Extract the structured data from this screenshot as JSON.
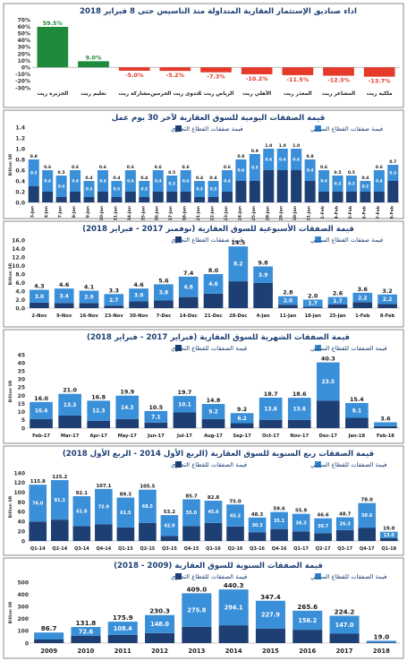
{
  "colors": {
    "residential": "#3a8fd9",
    "commercial": "#1d3f73",
    "panel_border": "#8a8a8a",
    "positive": "#1f8a3c",
    "negative": "#e53a2a",
    "title": "#1d3f73"
  },
  "chart_data": [
    {
      "type": "bar",
      "title": "اداء صناديق الإستثمار العقارية المتداولة منذ التاسيس حتى 8 فبراير 2018",
      "ylim": [
        -30,
        70
      ],
      "yticks": [
        "70%",
        "60%",
        "50%",
        "40%",
        "30%",
        "20%",
        "10%",
        "0%",
        "-10%",
        "-20%",
        "-30%"
      ],
      "categories": [
        "الجزيرة ريت",
        "تعليم ريت",
        "مشاركة ريت",
        "جدوى ريت الحرمين",
        "الرياض ريت 1",
        "الأهلي ريت",
        "المعذر ريت",
        "المشاعر ريت",
        "ملكية ريت"
      ],
      "values": [
        59.5,
        9.0,
        -5.0,
        -5.2,
        -7.3,
        -10.2,
        -11.5,
        -12.3,
        -13.7
      ],
      "value_labels": [
        "59.5%",
        "9.0%",
        "-5.0%",
        "-5.2%",
        "-7.3%",
        "-10.2%",
        "-11.5%",
        "-12.3%",
        "-13.7%"
      ]
    },
    {
      "type": "bar",
      "stacked": true,
      "title": "قيمة الصفقات اليومية للسوق العقارية لآخر 30 يوم عمل",
      "ylabel": "Billion SR",
      "ylim": [
        0,
        1.4
      ],
      "yticks": [
        "1.4",
        "1.2",
        "1.0",
        "0.8",
        "0.6",
        "0.4",
        "0.2",
        "0.0"
      ],
      "legend": [
        "قيمة صفقات القطاع السكني",
        "قيمة صفقات القطاع التجاري"
      ],
      "categories": [
        "3-Jan",
        "4-Jan",
        "7-Jan",
        "8-Jan",
        "9-Jan",
        "10-Jan",
        "11-Jan",
        "14-Jan",
        "15-Jan",
        "16-Jan",
        "17-Jan",
        "18-Jan",
        "21-Jan",
        "22-Jan",
        "23-Jan",
        "24-Jan",
        "25-Jan",
        "28-Jan",
        "29-Jan",
        "30-Jan",
        "31-Jan",
        "1-Feb",
        "4-Feb",
        "5-Feb",
        "6-Feb",
        "7-Feb",
        "8-Feb"
      ],
      "residential": [
        0.5,
        0.4,
        0.4,
        0.4,
        0.3,
        0.4,
        0.3,
        0.4,
        0.3,
        0.4,
        0.3,
        0.4,
        0.3,
        0.3,
        0.4,
        0.4,
        0.5,
        0.4,
        0.4,
        0.4,
        0.4,
        0.4,
        0.3,
        0.3,
        0.2,
        0.4,
        0.3
      ],
      "commercial": [
        0.3,
        0.2,
        0.1,
        0.2,
        0.1,
        0.2,
        0.1,
        0.2,
        0.1,
        0.2,
        0.2,
        0.2,
        0.1,
        0.1,
        0.2,
        0.4,
        0.4,
        0.6,
        0.6,
        0.6,
        0.4,
        0.2,
        0.2,
        0.2,
        0.2,
        0.2,
        0.4
      ],
      "totals": [
        "0.8",
        "0.6",
        "0.5",
        "0.6",
        "0.4",
        "0.6",
        "0.4",
        "0.6",
        "0.4",
        "0.6",
        "0.5",
        "0.6",
        "0.4",
        "0.4",
        "0.6",
        "0.8",
        "0.9",
        "1.0",
        "1.0",
        "1.0",
        "0.8",
        "0.6",
        "0.5",
        "0.5",
        "0.4",
        "0.6",
        "0.7"
      ]
    },
    {
      "type": "bar",
      "stacked": true,
      "title": "قيمة الصفقات الأسبوعية للسوق العقارية (نوفمبر 2017 - فبراير 2018)",
      "ylabel": "Billion SR",
      "ylim": [
        0,
        16
      ],
      "yticks": [
        "16.0",
        "14.0",
        "12.0",
        "10.0",
        "8.0",
        "6.0",
        "4.0",
        "2.0",
        "0.0"
      ],
      "legend": [
        "قيمة صفقات القطاع السكني",
        "قيمة صفقات القطاع التجاري"
      ],
      "categories": [
        "2-Nov",
        "9-Nov",
        "16-Nov",
        "23-Nov",
        "30-Nov",
        "7-Dec",
        "14-Dec",
        "21-Dec",
        "28-Dec",
        "4-Jan",
        "11-Jan",
        "18-Jan",
        "25-Jan",
        "1-Feb",
        "8-Feb"
      ],
      "totals": [
        4.3,
        4.6,
        4.1,
        3.3,
        4.6,
        5.6,
        7.4,
        8.0,
        14.5,
        9.8,
        2.8,
        2.0,
        2.6,
        3.6,
        3.2
      ],
      "residential": [
        3.0,
        3.4,
        2.9,
        2.7,
        3.0,
        3.8,
        4.8,
        4.6,
        8.2,
        3.9,
        2.0,
        1.7,
        1.7,
        2.2,
        2.2
      ],
      "residential_labels": [
        "3.0",
        "3.4",
        "2.9",
        "2.7",
        "3.0",
        "3.8",
        "4.8",
        "4.6",
        "8.2",
        "3.9",
        "2.0",
        "1.7",
        "1.7",
        "2.2",
        "2.2"
      ]
    },
    {
      "type": "bar",
      "stacked": true,
      "title": "قيمة الصفقات الشهرية للسوق العقارية (فبراير 2017 - فبراير 2018)",
      "ylabel": "Billion SR",
      "ylim": [
        0,
        45
      ],
      "yticks": [
        "45",
        "40",
        "35",
        "30",
        "25",
        "20",
        "15",
        "10",
        "5",
        "0"
      ],
      "legend": [
        "قيمة الصفقات للقطاع السكني",
        "قيمة الصفقات للقطاع التجاري"
      ],
      "categories": [
        "Feb-17",
        "Mar-17",
        "Apr-17",
        "May-17",
        "Jun-17",
        "Jul-17",
        "Aug-17",
        "Sep-17",
        "Oct-17",
        "Nov-17",
        "Dec-17",
        "Jan-18",
        "Feb-18"
      ],
      "totals": [
        16.0,
        21.0,
        16.8,
        19.9,
        10.5,
        19.7,
        14.8,
        9.2,
        18.7,
        18.6,
        40.3,
        15.4,
        3.6
      ],
      "residential": [
        10.4,
        13.3,
        12.3,
        14.3,
        7.1,
        10.1,
        9.2,
        6.2,
        13.6,
        13.6,
        23.5,
        9.1,
        2.4
      ],
      "residential_labels": [
        "10.4",
        "13.3",
        "12.3",
        "14.3",
        "7.1",
        "10.1",
        "9.2",
        "6.2",
        "13.6",
        "13.6",
        "23.5",
        "9.1",
        "2.4"
      ]
    },
    {
      "type": "bar",
      "stacked": true,
      "title": "قيمة الصفقات ربع السنوية للسوق العقارية (الربع الأول 2014 - الربع الأول 2018)",
      "ylabel": "Billion SR",
      "ylim": [
        0,
        140
      ],
      "yticks": [
        "140",
        "120",
        "100",
        "80",
        "60",
        "40",
        "20",
        "0"
      ],
      "legend": [
        "قيمة الصفقات للقطاع السكني",
        "قيمة الصفقات للقطاع التجاري"
      ],
      "categories": [
        "Q1-14",
        "Q2-14",
        "Q3-14",
        "Q4-14",
        "Q1-15",
        "Q2-15",
        "Q3-15",
        "Q4-15",
        "Q1-16",
        "Q2-16",
        "Q3-16",
        "Q4-16",
        "Q1-17",
        "Q2-17",
        "Q3-17",
        "Q4-17",
        "Q1-18"
      ],
      "totals": [
        115.8,
        125.2,
        92.1,
        107.1,
        89.3,
        105.5,
        53.2,
        85.7,
        82.8,
        75.0,
        48.3,
        59.6,
        55.9,
        46.6,
        48.7,
        78.0,
        19.0
      ],
      "residential": [
        76.0,
        81.3,
        61.8,
        72.9,
        61.5,
        68.5,
        42.9,
        55.0,
        45.6,
        45.2,
        30.3,
        35.1,
        36.3,
        30.7,
        26.3,
        50.6,
        13.0
      ],
      "residential_labels": [
        "76.0",
        "81.3",
        "61.8",
        "72.9",
        "61.5",
        "68.5",
        "42.9",
        "55.0",
        "45.6",
        "45.2",
        "30.3",
        "35.1",
        "36.3",
        "30.7",
        "26.3",
        "50.6",
        "13.0"
      ]
    },
    {
      "type": "bar",
      "stacked": true,
      "title": "قيمة الصفقات السنوية للسوق العقارية (2009 - 2018)",
      "ylabel": "Billion SR",
      "ylim": [
        0,
        500
      ],
      "yticks": [
        "500",
        "400",
        "300",
        "200",
        "100",
        "0"
      ],
      "legend": [
        "قيمة الصفقات للقطاع السكني",
        "قيمة الصفقات للقطاع التجاري"
      ],
      "categories": [
        "2009",
        "2010",
        "2011",
        "2012",
        "2013",
        "2014",
        "2015",
        "2016",
        "2017",
        "2018"
      ],
      "totals": [
        86.7,
        131.8,
        175.9,
        230.3,
        409.0,
        440.3,
        347.4,
        265.6,
        224.2,
        19.0
      ],
      "residential": [
        57.2,
        72.6,
        108.4,
        148.0,
        275.8,
        294.1,
        227.9,
        156.2,
        147.0,
        13.0
      ],
      "residential_labels": [
        "57.2",
        "72.6",
        "108.4",
        "148.0",
        "275.8",
        "294.1",
        "227.9",
        "156.2",
        "147.0",
        ""
      ]
    }
  ]
}
